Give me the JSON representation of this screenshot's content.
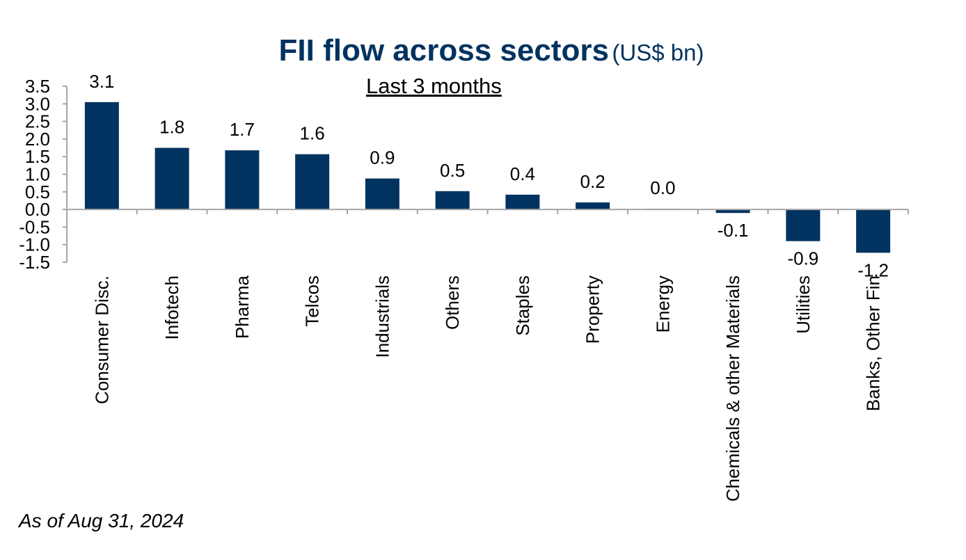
{
  "title": "FII flow across sectors",
  "title_unit": "(US$ bn)",
  "subtitle": "Last 3 months",
  "footnote": "As of Aug 31, 2024",
  "colors": {
    "bar": "#00335f",
    "title": "#00335f",
    "axis": "#a6a6a6"
  },
  "chart_data": {
    "type": "bar",
    "title": "FII flow across sectors (US$ bn)",
    "subtitle": "Last 3 months",
    "categories": [
      "Consumer Disc.",
      "Infotech",
      "Pharma",
      "Telcos",
      "Industrials",
      "Others",
      "Staples",
      "Property",
      "Energy",
      "Chemicals & other Materials",
      "Utilities",
      "Banks, Other Fin"
    ],
    "values": [
      3.05,
      1.75,
      1.68,
      1.57,
      0.88,
      0.52,
      0.42,
      0.2,
      0.02,
      -0.1,
      -0.9,
      -1.23
    ],
    "data_labels": [
      "3.1",
      "1.8",
      "1.7",
      "1.6",
      "0.9",
      "0.5",
      "0.4",
      "0.2",
      "0.0",
      "-0.1",
      "-0.9",
      "-1.2"
    ],
    "yticks": [
      "3.5",
      "3.0",
      "2.5",
      "2.0",
      "1.5",
      "1.0",
      "0.5",
      "0.0",
      "-0.5",
      "-1.0",
      "-1.5"
    ],
    "ylim": [
      -1.5,
      3.5
    ],
    "grid": false,
    "legend": false
  }
}
